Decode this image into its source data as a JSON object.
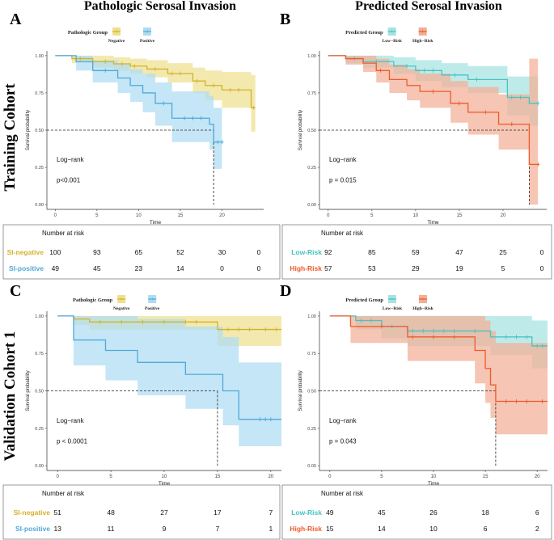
{
  "colors": {
    "negative": "#D4B22A",
    "positive": "#4FA9DA",
    "low_risk": "#47C3C2",
    "high_risk": "#EF5A2A",
    "neg_fill": "#EFE08F",
    "pos_fill": "#AEDCF2",
    "low_fill": "#A5E3E2",
    "high_fill": "#F3AE95",
    "overlap_fill": "#B3A97A"
  },
  "figure": {
    "col_titles": [
      "Pathologic Serosal Invasion",
      "Predicted Serosal Invasion"
    ],
    "row_titles": [
      "Training Cohort",
      "Validation Cohort 1"
    ]
  },
  "panels": [
    {
      "letter": "A",
      "legend_title": "Pathologic Group",
      "stat_label": "Log−rank",
      "p_value": "p<0.001",
      "risk_title": "Number at risk",
      "chart_data": {
        "type": "line",
        "subtype": "kaplan-meier",
        "xlabel": "Time",
        "ylabel": "Survival probability",
        "xlim": [
          -1,
          25
        ],
        "ylim": [
          0,
          1
        ],
        "xticks": [
          0,
          5,
          10,
          15,
          20
        ],
        "yticks": [
          "0.00",
          "0.25",
          "0.50",
          "0.75",
          "1.00"
        ],
        "median_lines": [
          19
        ],
        "series": [
          {
            "name": "Negative",
            "risk_label": "SI-negative",
            "color_key": "negative",
            "fill_key": "neg_fill",
            "x": [
              0,
              2,
              4.5,
              7,
              9,
              11,
              13.5,
              16.5,
              18,
              20,
              23.5,
              24
            ],
            "y": [
              1.0,
              0.98,
              0.96,
              0.945,
              0.93,
              0.91,
              0.88,
              0.83,
              0.8,
              0.77,
              0.65,
              0.65
            ],
            "lower": [
              1.0,
              0.95,
              0.92,
              0.9,
              0.88,
              0.855,
              0.82,
              0.75,
              0.7,
              0.65,
              0.49,
              0.49
            ],
            "upper": [
              1.0,
              1.0,
              1.0,
              0.99,
              0.98,
              0.97,
              0.95,
              0.92,
              0.9,
              0.89,
              0.87,
              0.87
            ],
            "censor_x": [
              3,
              6,
              8,
              9.5,
              12,
              14,
              15,
              17,
              19,
              21,
              22,
              23.8
            ],
            "risk": [
              "100",
              "93",
              "65",
              "52",
              "30",
              "0"
            ]
          },
          {
            "name": "Positive",
            "risk_label": "SI-positive",
            "color_key": "positive",
            "fill_key": "pos_fill",
            "x": [
              0,
              2.5,
              4.5,
              7.5,
              9,
              10.5,
              12,
              14,
              18.5,
              19,
              20
            ],
            "y": [
              1.0,
              0.96,
              0.9,
              0.85,
              0.8,
              0.75,
              0.68,
              0.58,
              0.54,
              0.42,
              0.42
            ],
            "lower": [
              1.0,
              0.9,
              0.82,
              0.75,
              0.69,
              0.62,
              0.53,
              0.42,
              0.37,
              0.24,
              0.24
            ],
            "upper": [
              1.0,
              1.0,
              0.97,
              0.95,
              0.91,
              0.88,
              0.82,
              0.76,
              0.73,
              0.65,
              0.65
            ],
            "censor_x": [
              6,
              13,
              15.5,
              16.5,
              17.5,
              19.5,
              20
            ],
            "risk": [
              "49",
              "45",
              "23",
              "14",
              "0",
              "0"
            ]
          }
        ]
      }
    },
    {
      "letter": "B",
      "legend_title": "Predicted Group",
      "stat_label": "Log−rank",
      "p_value": "p = 0.015",
      "risk_title": "Number at risk",
      "chart_data": {
        "type": "line",
        "subtype": "kaplan-meier",
        "xlabel": "Time",
        "ylabel": "Survival probability",
        "xlim": [
          -1,
          25
        ],
        "ylim": [
          0,
          1
        ],
        "xticks": [
          0,
          5,
          10,
          15,
          20
        ],
        "yticks": [
          "0.00",
          "0.25",
          "0.50",
          "0.75",
          "1.00"
        ],
        "median_lines": [
          23
        ],
        "series": [
          {
            "name": "Low−Risk",
            "risk_label": "Low-Risk",
            "color_key": "low_risk",
            "fill_key": "low_fill",
            "x": [
              0,
              2,
              4,
              7.5,
              10,
              13,
              16,
              20.5,
              23,
              24
            ],
            "y": [
              1.0,
              0.98,
              0.96,
              0.93,
              0.9,
              0.87,
              0.84,
              0.72,
              0.68,
              0.68
            ],
            "lower": [
              1.0,
              0.95,
              0.92,
              0.88,
              0.83,
              0.79,
              0.75,
              0.6,
              0.53,
              0.53
            ],
            "upper": [
              1.0,
              1.0,
              1.0,
              0.99,
              0.97,
              0.95,
              0.93,
              0.86,
              0.86,
              0.86
            ],
            "censor_x": [
              3,
              5.5,
              9,
              11,
              12,
              14.5,
              17,
              21,
              22,
              24
            ],
            "risk": [
              "92",
              "85",
              "59",
              "47",
              "25",
              "0"
            ]
          },
          {
            "name": "High−Risk",
            "risk_label": "High-Risk",
            "color_key": "high_risk",
            "fill_key": "high_fill",
            "x": [
              0,
              2,
              4,
              5.5,
              7,
              9,
              10.5,
              14,
              16,
              19.5,
              23,
              24
            ],
            "y": [
              1.0,
              0.98,
              0.95,
              0.9,
              0.84,
              0.8,
              0.76,
              0.68,
              0.62,
              0.54,
              0.27,
              0.27
            ],
            "lower": [
              1.0,
              0.94,
              0.89,
              0.82,
              0.75,
              0.7,
              0.65,
              0.55,
              0.47,
              0.37,
              0.0,
              0.0
            ],
            "upper": [
              1.0,
              1.0,
              1.0,
              0.98,
              0.94,
              0.91,
              0.88,
              0.83,
              0.79,
              0.74,
              0.98,
              0.98
            ],
            "censor_x": [
              6,
              12,
              15,
              18,
              21,
              24
            ],
            "risk": [
              "57",
              "53",
              "29",
              "19",
              "5",
              "0"
            ]
          }
        ]
      }
    },
    {
      "letter": "C",
      "legend_title": "Pathologic Group",
      "stat_label": "Log−rank",
      "p_value": "p < 0.0001",
      "risk_title": "Number at risk",
      "chart_data": {
        "type": "line",
        "subtype": "kaplan-meier",
        "xlabel": "Time",
        "ylabel": "Survival probability",
        "xlim": [
          -1,
          21
        ],
        "ylim": [
          0,
          1
        ],
        "xticks": [
          0,
          5,
          10,
          15,
          20
        ],
        "yticks": [
          "0.00",
          "0.25",
          "0.50",
          "0.75",
          "1.00"
        ],
        "median_lines": [
          15
        ],
        "series": [
          {
            "name": "Negative",
            "risk_label": "SI-negative",
            "color_key": "negative",
            "fill_key": "neg_fill",
            "x": [
              0,
              1.5,
              3,
              15,
              21
            ],
            "y": [
              1.0,
              0.98,
              0.96,
              0.91,
              0.91
            ],
            "lower": [
              1.0,
              0.94,
              0.91,
              0.8,
              0.8
            ],
            "upper": [
              1.0,
              1.0,
              1.0,
              1.0,
              1.0
            ],
            "censor_x": [
              4,
              6,
              8,
              10,
              12,
              13,
              16,
              17,
              18,
              19.5,
              20.5
            ],
            "risk": [
              "51",
              "48",
              "27",
              "17",
              "7"
            ]
          },
          {
            "name": "Positive",
            "risk_label": "SI-positive",
            "color_key": "positive",
            "fill_key": "pos_fill",
            "x": [
              0,
              1.5,
              4.5,
              7.5,
              12,
              15.5,
              17,
              21
            ],
            "y": [
              1.0,
              0.84,
              0.77,
              0.69,
              0.61,
              0.5,
              0.31,
              0.31
            ],
            "lower": [
              1.0,
              0.67,
              0.57,
              0.47,
              0.38,
              0.27,
              0.13,
              0.13
            ],
            "upper": [
              1.0,
              1.0,
              1.0,
              0.98,
              0.93,
              0.86,
              0.69,
              0.69
            ],
            "censor_x": [
              19,
              19.5,
              20
            ],
            "risk": [
              "13",
              "11",
              "9",
              "7",
              "1"
            ]
          }
        ]
      }
    },
    {
      "letter": "D",
      "legend_title": "Predicted Group",
      "stat_label": "Log−rank",
      "p_value": "p = 0.043",
      "risk_title": "Number at risk",
      "chart_data": {
        "type": "line",
        "subtype": "kaplan-meier",
        "xlabel": "Time",
        "ylabel": "Survival probability",
        "xlim": [
          -1,
          21
        ],
        "ylim": [
          0,
          1
        ],
        "xticks": [
          0,
          5,
          10,
          15,
          20
        ],
        "yticks": [
          "0.00",
          "0.25",
          "0.50",
          "0.75",
          "1.00"
        ],
        "median_lines": [
          16
        ],
        "series": [
          {
            "name": "Low−Risk",
            "risk_label": "Low-Risk",
            "color_key": "low_risk",
            "fill_key": "low_fill",
            "x": [
              0,
              2.5,
              5,
              7.5,
              15.5,
              19.5,
              21
            ],
            "y": [
              1.0,
              0.97,
              0.93,
              0.9,
              0.86,
              0.8,
              0.8
            ],
            "lower": [
              1.0,
              0.91,
              0.85,
              0.8,
              0.74,
              0.65,
              0.65
            ],
            "upper": [
              1.0,
              1.0,
              1.0,
              1.0,
              1.0,
              0.97,
              0.97
            ],
            "censor_x": [
              3,
              4,
              6,
              8,
              9,
              10,
              11,
              12,
              14,
              17,
              18,
              19,
              20,
              20.5
            ],
            "risk": [
              "49",
              "45",
              "26",
              "18",
              "6"
            ]
          },
          {
            "name": "High−Risk",
            "risk_label": "High-Risk",
            "color_key": "high_risk",
            "fill_key": "high_fill",
            "x": [
              0,
              2,
              7.5,
              14,
              15,
              15.5,
              16,
              21
            ],
            "y": [
              1.0,
              0.93,
              0.86,
              0.77,
              0.65,
              0.54,
              0.43,
              0.43
            ],
            "lower": [
              1.0,
              0.82,
              0.7,
              0.55,
              0.42,
              0.32,
              0.21,
              0.21
            ],
            "upper": [
              1.0,
              1.0,
              1.0,
              1.0,
              0.97,
              0.9,
              0.82,
              0.82
            ],
            "censor_x": [
              5,
              8,
              10,
              12,
              17,
              18,
              19,
              20.5
            ],
            "risk": [
              "15",
              "14",
              "10",
              "6",
              "2"
            ]
          }
        ]
      }
    }
  ]
}
